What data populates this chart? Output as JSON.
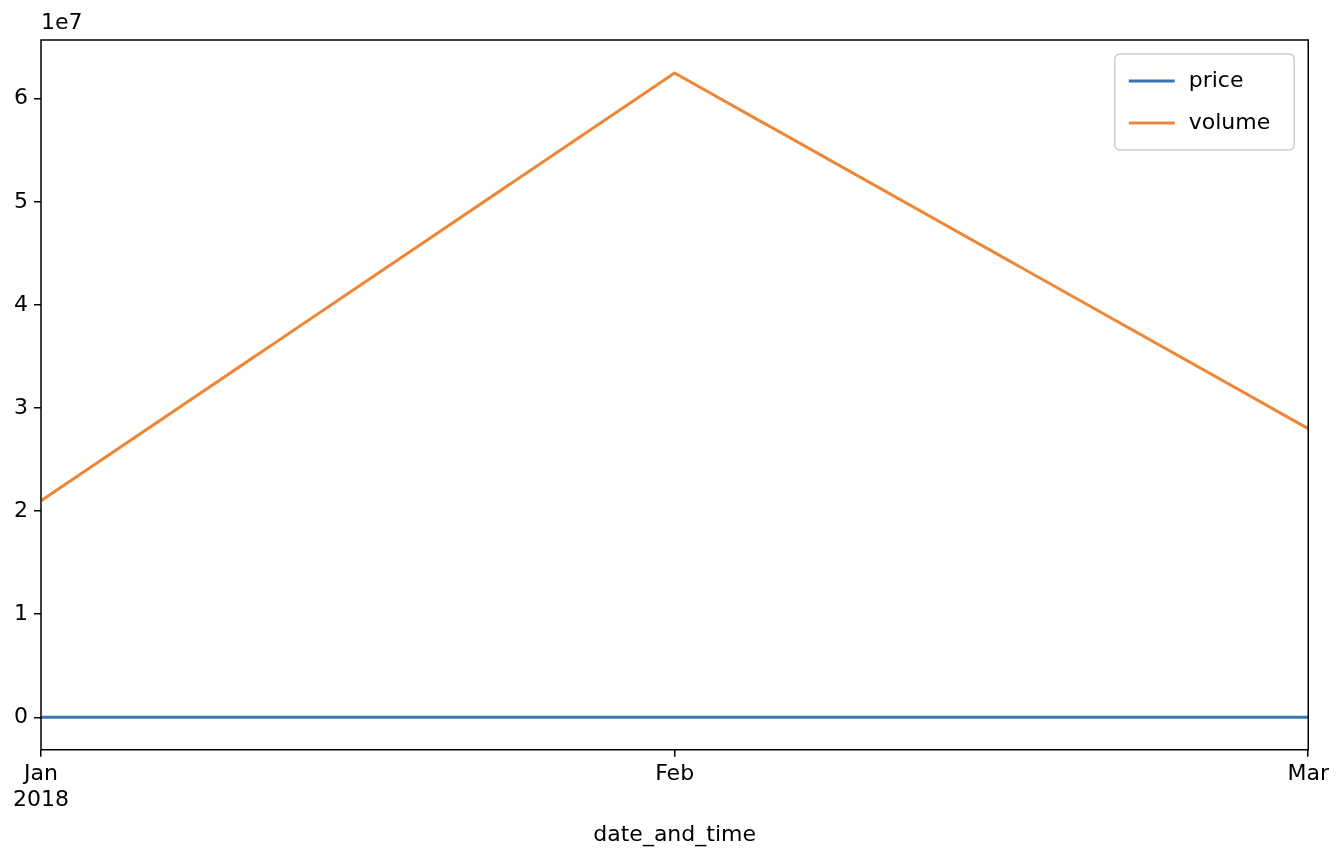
{
  "chart_data": {
    "type": "line",
    "xlabel": "date_and_time",
    "categories": [
      "Jan\n2018",
      "Feb",
      "Mar"
    ],
    "series": [
      {
        "name": "price",
        "color": "#3a75b0",
        "values": [
          0,
          0,
          0
        ]
      },
      {
        "name": "volume",
        "color": "#ef8636",
        "values": [
          2.1,
          6.25,
          2.8
        ]
      }
    ],
    "ylim": [
      -0.315,
      6.57
    ],
    "yticks": [
      0,
      1,
      2,
      3,
      4,
      5,
      6
    ],
    "annotations": [
      "1e7"
    ],
    "legend": "top right",
    "grid": false,
    "marker": "none",
    "line_style": "solid"
  }
}
